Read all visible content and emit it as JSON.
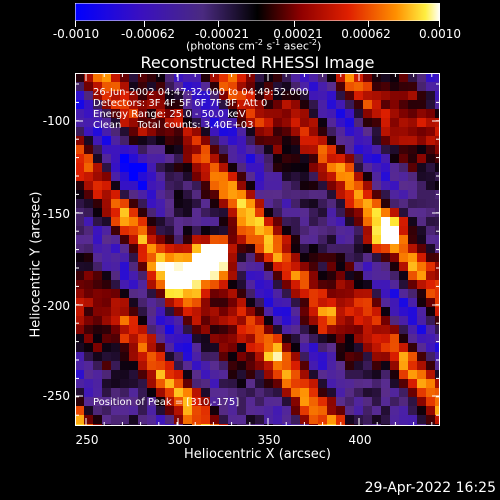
{
  "colorbar": {
    "tick_labels": [
      "-0.0010",
      "-0.00062",
      "-0.00021",
      "0.00021",
      "0.00062",
      "0.0010"
    ],
    "label_prefix": "(photons cm",
    "label_exp1": "-2",
    "label_mid": " s",
    "label_exp2": "-1",
    "label_mid2": " asec",
    "label_exp3": "-2",
    "label_suffix": ")"
  },
  "image": {
    "title": "Reconstructed RHESSI Image",
    "overlay": {
      "time_range": "26-Jun-2002 04:47:32.000 to 04:49:52.000",
      "detectors": "Detectors: 3F 4F 5F 6F 7F 8F, Att 0",
      "energy_range": "Energy Range: 25.0 - 50.0 keV",
      "clean_line": "Clean     Total counts: 3.40E+03",
      "peak_position": "Position of Peak = [310,-175]"
    },
    "xlabel": "Heliocentric X (arcsec)",
    "ylabel": "Heliocentric Y (arcsec)",
    "x_tick_labels": [
      "250",
      "300",
      "350",
      "400"
    ],
    "y_tick_labels": [
      "-100",
      "-150",
      "-200",
      "-250"
    ],
    "xlim": [
      245,
      435
    ],
    "ylim": [
      -265,
      -80
    ]
  },
  "footer": {
    "timestamp": "29-Apr-2022 16:25"
  },
  "colors": {
    "background": "#000000",
    "foreground": "#ffffff",
    "colormap": [
      "#0000ff",
      "#2a00a8",
      "#5a2f8a",
      "#000000",
      "#7a0000",
      "#e01000",
      "#ff8000",
      "#ffe020",
      "#ffffff"
    ]
  }
}
